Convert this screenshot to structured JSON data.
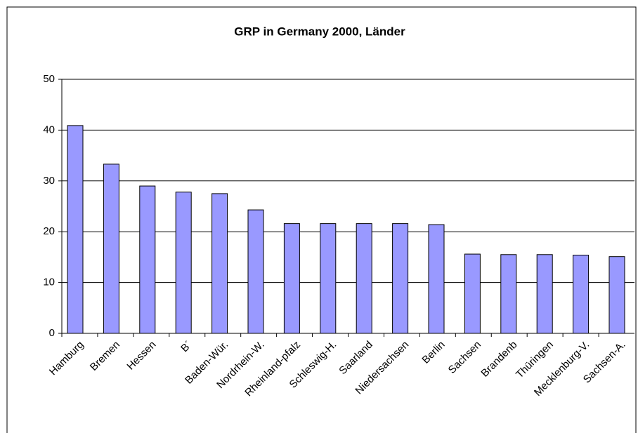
{
  "chart_data": {
    "type": "bar",
    "title": "GRP in Germany 2000, Länder",
    "categories": [
      "Hamburg",
      "Bremen",
      "Hessen",
      "B´",
      "Baden-Wür.",
      "Nordrhein-W.",
      "Rheinland-pfalz",
      "Schleswig-H.",
      "Saarland",
      "Niedersachsen",
      "Berlin",
      "Sachsen",
      "Brandenb",
      "Thüringen",
      "Mecklenburg-V.",
      "Sachsen-A."
    ],
    "values": [
      40.9,
      33.3,
      29.0,
      27.8,
      27.5,
      24.3,
      21.6,
      21.6,
      21.6,
      21.6,
      21.4,
      15.6,
      15.5,
      15.5,
      15.4,
      15.1
    ],
    "color": "#9999ff",
    "ylim": [
      0,
      50
    ],
    "yticks": [
      0,
      10,
      20,
      30,
      40,
      50
    ],
    "grid": true
  }
}
